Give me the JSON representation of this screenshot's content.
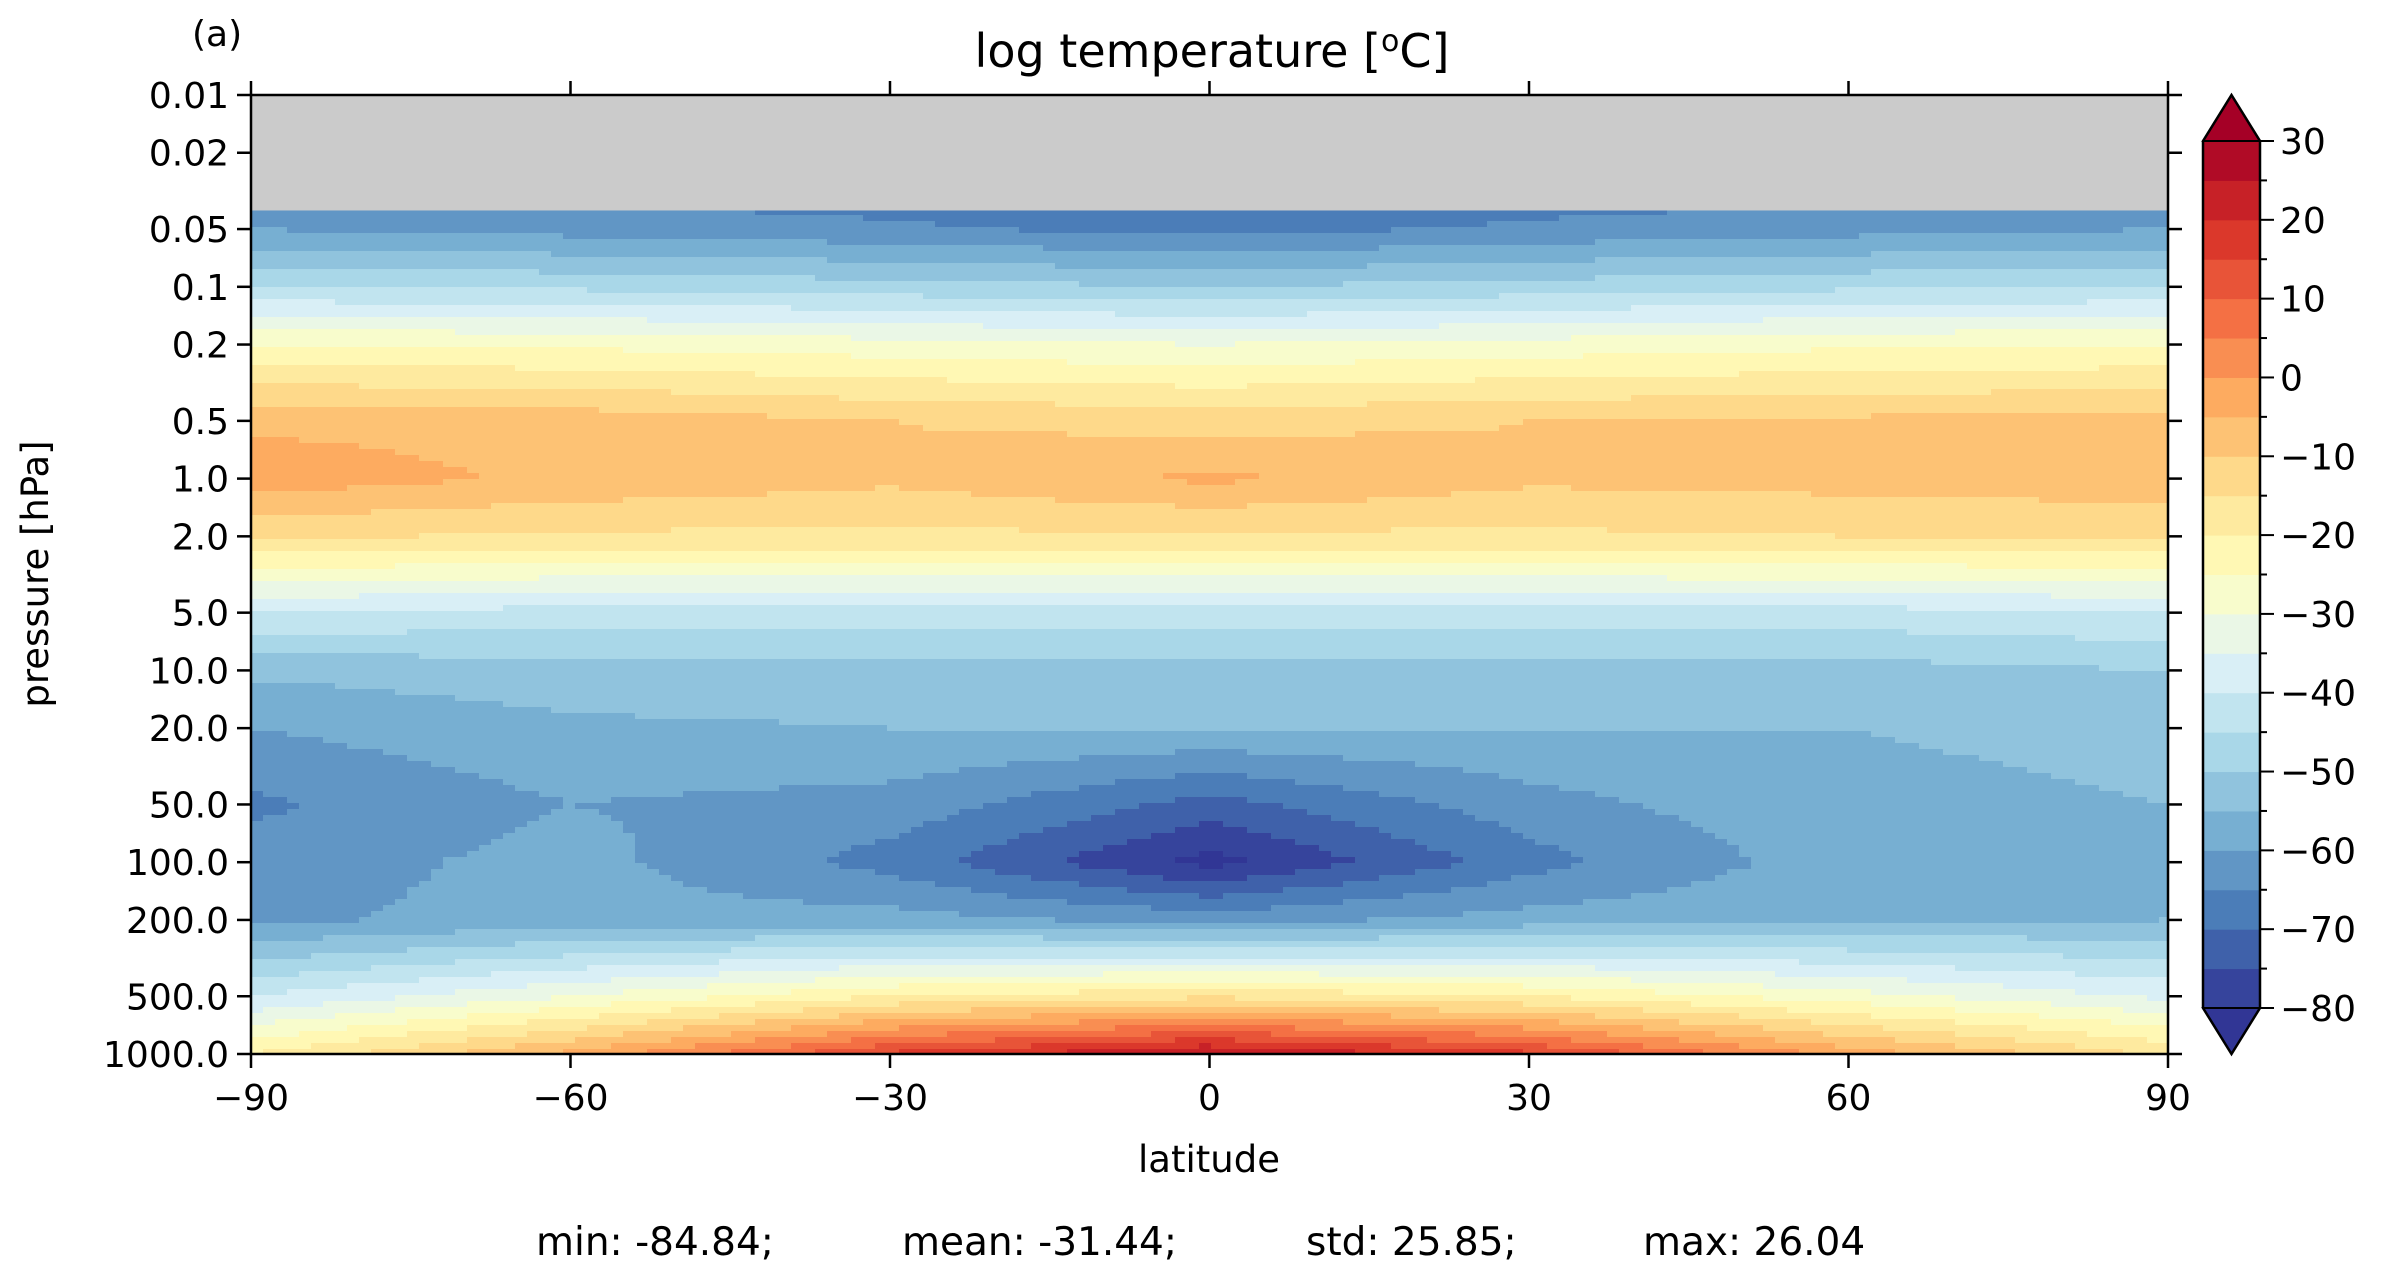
{
  "chart_data": {
    "type": "heatmap",
    "subtype": "filled-contour",
    "panel_label": "(a)",
    "title": "log temperature [",
    "title_sup": "o",
    "title_end": "C]",
    "xlabel": "latitude",
    "ylabel": "pressure [hPa]",
    "xlim": [
      -90,
      90
    ],
    "ylim": [
      1000,
      0.01
    ],
    "y_scale": "log-pressure",
    "x_ticks": [
      -90,
      -60,
      -30,
      0,
      30,
      60,
      90
    ],
    "x_tick_labels": [
      "−90",
      "−60",
      "−30",
      "0",
      "30",
      "60",
      "90"
    ],
    "y_ticks": [
      0.01,
      0.02,
      0.05,
      0.1,
      0.2,
      0.5,
      1.0,
      2.0,
      5.0,
      10.0,
      20.0,
      50.0,
      100.0,
      200.0,
      500.0,
      1000.0
    ],
    "y_tick_labels": [
      "0.01",
      "0.02",
      "0.05",
      "0.1",
      "0.2",
      "0.5",
      "1.0",
      "2.0",
      "5.0",
      "10.0",
      "20.0",
      "50.0",
      "100.0",
      "200.0",
      "500.0",
      "1000.0"
    ],
    "missing_region": {
      "pressure_top": 0.01,
      "pressure_bottom": 0.04,
      "color": "#cbcbcb"
    },
    "colorbar": {
      "min": -80,
      "max": 30,
      "step": 5,
      "extend": "both",
      "ticks": [
        30,
        20,
        10,
        0,
        -10,
        -20,
        -30,
        -40,
        -50,
        -60,
        -70,
        -80
      ],
      "tick_labels": [
        "30",
        "20",
        "10",
        "0",
        "−10",
        "−20",
        "−30",
        "−40",
        "−50",
        "−60",
        "−70",
        "−80"
      ],
      "colormap": "RdYlBu_r",
      "under_color": "#313695",
      "over_color": "#a50026"
    },
    "profile": {
      "pressure": [
        0.04,
        0.05,
        0.1,
        0.2,
        0.5,
        1.0,
        2.0,
        5.0,
        10.0,
        20.0,
        50.0,
        100.0,
        200.0,
        500.0,
        1000.0
      ],
      "latitude": [
        -90,
        -60,
        -30,
        0,
        30,
        60,
        90
      ],
      "temperature": [
        [
          -62,
          -64,
          -66,
          -70,
          -66,
          -64,
          -62
        ],
        [
          -60,
          -62,
          -64,
          -67,
          -64,
          -62,
          -60
        ],
        [
          -45,
          -46,
          -48,
          -50,
          -48,
          -46,
          -45
        ],
        [
          -25,
          -26,
          -28,
          -30,
          -28,
          -26,
          -25
        ],
        [
          -6,
          -7,
          -10,
          -12,
          -10,
          -9,
          -8
        ],
        [
          -2,
          -6,
          -9,
          -4,
          -9,
          -8,
          -7
        ],
        [
          -14,
          -16,
          -16,
          -16,
          -16,
          -15,
          -14
        ],
        [
          -40,
          -42,
          -42,
          -42,
          -42,
          -42,
          -40
        ],
        [
          -54,
          -52,
          -52,
          -52,
          -52,
          -52,
          -50
        ],
        [
          -60,
          -56,
          -55,
          -55,
          -55,
          -55,
          -54
        ],
        [
          -66,
          -60,
          -62,
          -72,
          -62,
          -56,
          -55
        ],
        [
          -63,
          -58,
          -67,
          -82,
          -67,
          -57,
          -56
        ],
        [
          -61,
          -58,
          -58,
          -62,
          -58,
          -56,
          -55
        ],
        [
          -40,
          -30,
          -20,
          -16,
          -20,
          -28,
          -36
        ],
        [
          -20,
          -4,
          16,
          26,
          16,
          -2,
          -16
        ]
      ]
    },
    "stats": {
      "min": "min: -84.84;",
      "mean": "mean: -31.44;",
      "std": "std: 25.85;",
      "max": "max: 26.04"
    }
  }
}
